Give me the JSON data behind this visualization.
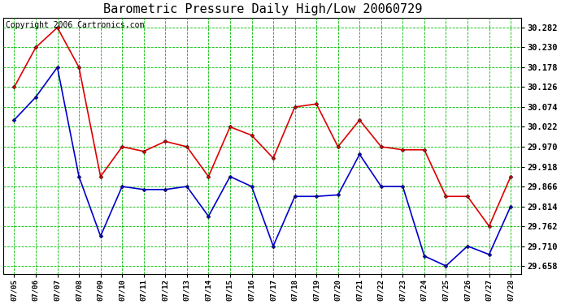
{
  "title": "Barometric Pressure Daily High/Low 20060729",
  "copyright": "Copyright 2006 Cartronics.com",
  "dates": [
    "07/05",
    "07/06",
    "07/07",
    "07/08",
    "07/09",
    "07/10",
    "07/11",
    "07/12",
    "07/13",
    "07/14",
    "07/15",
    "07/16",
    "07/17",
    "07/18",
    "07/19",
    "07/20",
    "07/21",
    "07/22",
    "07/23",
    "07/24",
    "07/25",
    "07/26",
    "07/27",
    "07/28"
  ],
  "high": [
    30.126,
    30.23,
    30.282,
    30.178,
    29.892,
    29.97,
    29.958,
    29.984,
    29.97,
    29.892,
    30.022,
    30.0,
    29.94,
    30.074,
    30.082,
    29.97,
    30.04,
    29.97,
    29.962,
    29.962,
    29.84,
    29.84,
    29.762,
    29.892
  ],
  "low": [
    30.04,
    30.1,
    30.178,
    29.892,
    29.736,
    29.866,
    29.858,
    29.858,
    29.866,
    29.788,
    29.892,
    29.866,
    29.71,
    29.84,
    29.84,
    29.844,
    29.95,
    29.866,
    29.866,
    29.684,
    29.658,
    29.71,
    29.688,
    29.814
  ],
  "ylim_min": 29.636,
  "ylim_max": 30.308,
  "yticks": [
    29.658,
    29.71,
    29.762,
    29.814,
    29.866,
    29.918,
    29.97,
    30.022,
    30.074,
    30.126,
    30.178,
    30.23,
    30.282
  ],
  "high_color": "#dd0000",
  "low_color": "#0000cc",
  "bg_color": "#ffffff",
  "plot_bg_color": "#ffffff",
  "grid_color": "#00bb00",
  "title_fontsize": 11,
  "copyright_fontsize": 7
}
